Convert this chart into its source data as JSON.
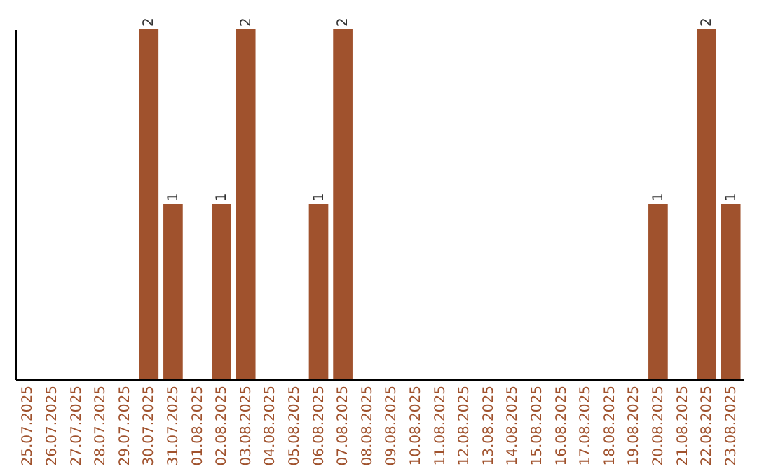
{
  "chart_data": {
    "type": "bar",
    "categories": [
      "25.07.2025",
      "26.07.2025",
      "27.07.2025",
      "28.07.2025",
      "29.07.2025",
      "30.07.2025",
      "31.07.2025",
      "01.08.2025",
      "02.08.2025",
      "03.08.2025",
      "04.08.2025",
      "05.08.2025",
      "06.08.2025",
      "07.08.2025",
      "08.08.2025",
      "09.08.2025",
      "10.08.2025",
      "11.08.2025",
      "12.08.2025",
      "13.08.2025",
      "14.08.2025",
      "15.08.2025",
      "16.08.2025",
      "17.08.2025",
      "18.08.2025",
      "19.08.2025",
      "20.08.2025",
      "21.08.2025",
      "22.08.2025",
      "23.08.2025"
    ],
    "values": [
      0,
      0,
      0,
      0,
      0,
      2,
      1,
      0,
      1,
      2,
      0,
      0,
      1,
      2,
      0,
      0,
      0,
      0,
      0,
      0,
      0,
      0,
      0,
      0,
      0,
      0,
      1,
      0,
      2,
      1
    ],
    "value_labels": [
      null,
      null,
      null,
      null,
      null,
      "2",
      "1",
      null,
      "1",
      "2",
      null,
      null,
      "1",
      "2",
      null,
      null,
      null,
      null,
      null,
      null,
      null,
      null,
      null,
      null,
      null,
      null,
      "1",
      null,
      "2",
      "1"
    ],
    "color": "#a0522d",
    "tick_labels": "x"
  }
}
